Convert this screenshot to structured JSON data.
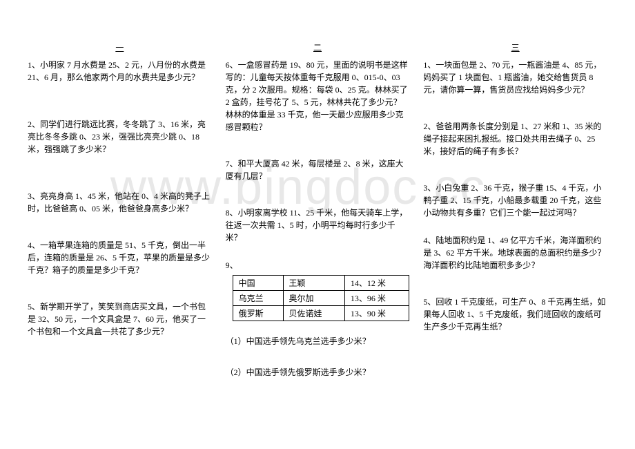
{
  "watermark": "www.bingdoc.cc",
  "columns": [
    {
      "title": "一",
      "questions": [
        {
          "text": "1、小明家 7 月水费是 25、2 元，八月份的水费是 21、6 月，那么他家两个月的水费共是多少元？",
          "spacing": "lg"
        },
        {
          "text": "2、同学们进行跳远比赛，冬冬跳了 3、16 米，亮亮比冬冬多跳 0、23 米，强强比亮亮少跳 0、18 米，强强跳了多少米？",
          "spacing": "lg"
        },
        {
          "text": "3、亮亮身高 1、45 米，他站在 0、4 米高的凳子上时，比爸爸高 0、05 米，他爸爸身高多少米？",
          "spacing": "md"
        },
        {
          "text": "4、一箱苹果连箱的质量是 51、5 千克，倒出一半后，连箱的质量是 26、5 千克，苹果的质量是多少千克？箱子的质量是多少千克？",
          "spacing": "md"
        },
        {
          "text": "5、新学期开学了，笑笑到商店买文具，一个书包是 32、50 元，一个文具盒是 7、60 元，他买了一个书包和一个文具盒一共花了多少元？",
          "spacing": "q"
        }
      ]
    },
    {
      "title": "二",
      "questions": [
        {
          "text": "6、一盒感冒药是 19、80 元，里面的说明书是这样写的：儿童每天按体重每千克服用 0、015-0、03 克，分 2 次服用。规格：每袋 0、25 克。林林买了 2 盒药，挂号花了 5、5 元，林林共花了多少元？林林的体重是 33 千克，他一天最少应服用多少克感冒颗粒？",
          "spacing": "md"
        },
        {
          "text": "7、和平大厦高 42 米，每层楼是 2、8 米，这座大厦有几层？",
          "spacing": "md"
        },
        {
          "text": "8、小明家离学校 11、25 千米，他每天骑车上学，往返一次共需 1、5 时，小明平均每时行多少千米？",
          "spacing": "q"
        }
      ],
      "table_label": "9、",
      "table": {
        "rows": [
          [
            "中国",
            "王颖",
            "14、12 米"
          ],
          [
            "乌克兰",
            "奥尔加",
            "13、96 米"
          ],
          [
            "俄罗斯",
            "贝佐诺娃",
            "13、90 米"
          ]
        ]
      },
      "subquestions": [
        {
          "text": "（1）中国选手领先乌克兰选手多少米？"
        },
        {
          "text": "（2）中国选手领先俄罗斯选手多少米？"
        }
      ]
    },
    {
      "title": "三",
      "questions": [
        {
          "text": "1、一块面包是 2、70 元，一瓶酱油是 4、85 元，妈妈买了 1 块面包、1 瓶酱油，她交给售货员 8 元，请你算一算，售货员应找给妈妈多少元？",
          "spacing": "md"
        },
        {
          "text": "2、爸爸用两条长度分别是 1、27 米和 1、35 米的绳子接起来困扎报纸。接口处共用去绳子 0、25 米，接好后的绳子有多长？",
          "spacing": "md"
        },
        {
          "text": "3、小白兔重 2、36 千克，猴子重 15、4 千克，小鸭子重 2、15 千克，小船最多载重 20 千克，这些小动物共有多重？它们三个能一起过河吗？",
          "spacing": "q"
        },
        {
          "text": "4、陆地面积约是 1、49 亿平方千米，海洋面积约是 3、62 平方千米。地球表面的总面积约是多少？海洋面积约比陆地面积多多少？",
          "spacing": "md"
        },
        {
          "text": "5、回收 1 千克废纸，可生产 0、8 千克再生纸，如果每人回收 1、5 千克废纸，我们班回收的废纸可生产多少千克再生纸？",
          "spacing": "q"
        }
      ]
    }
  ]
}
